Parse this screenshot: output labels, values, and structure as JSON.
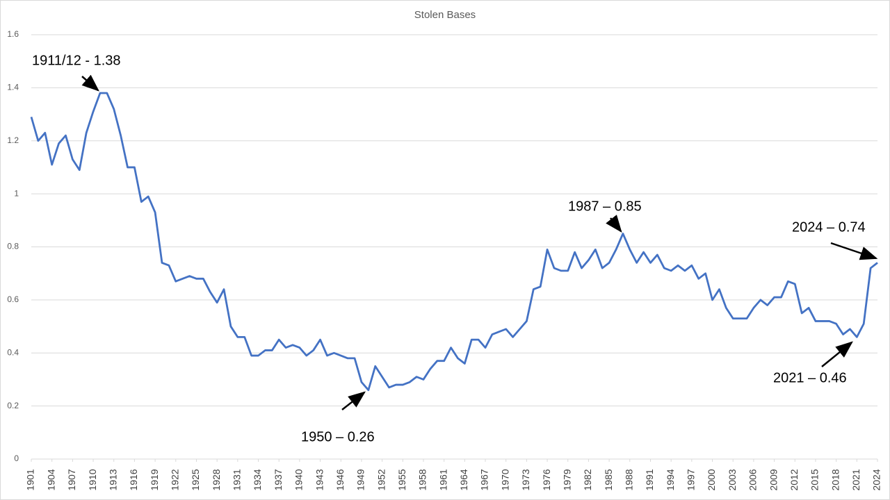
{
  "chart_data": {
    "type": "line",
    "title": "Stolen Bases",
    "x": [
      1901,
      1902,
      1903,
      1904,
      1905,
      1906,
      1907,
      1908,
      1909,
      1910,
      1911,
      1912,
      1913,
      1914,
      1915,
      1916,
      1917,
      1918,
      1919,
      1920,
      1921,
      1922,
      1923,
      1924,
      1925,
      1926,
      1927,
      1928,
      1929,
      1930,
      1931,
      1932,
      1933,
      1934,
      1935,
      1936,
      1937,
      1938,
      1939,
      1940,
      1941,
      1942,
      1943,
      1944,
      1945,
      1946,
      1947,
      1948,
      1949,
      1950,
      1951,
      1952,
      1953,
      1954,
      1955,
      1956,
      1957,
      1958,
      1959,
      1960,
      1961,
      1962,
      1963,
      1964,
      1965,
      1966,
      1967,
      1968,
      1969,
      1970,
      1971,
      1972,
      1973,
      1974,
      1975,
      1976,
      1977,
      1978,
      1979,
      1980,
      1981,
      1982,
      1983,
      1984,
      1985,
      1986,
      1987,
      1988,
      1989,
      1990,
      1991,
      1992,
      1993,
      1994,
      1995,
      1996,
      1997,
      1998,
      1999,
      2000,
      2001,
      2002,
      2003,
      2004,
      2005,
      2006,
      2007,
      2008,
      2009,
      2010,
      2011,
      2012,
      2013,
      2014,
      2015,
      2016,
      2017,
      2018,
      2019,
      2020,
      2021,
      2022,
      2023,
      2024
    ],
    "values": [
      1.29,
      1.2,
      1.23,
      1.11,
      1.19,
      1.22,
      1.13,
      1.09,
      1.23,
      1.31,
      1.38,
      1.38,
      1.32,
      1.22,
      1.1,
      1.1,
      0.97,
      0.99,
      0.93,
      0.74,
      0.73,
      0.67,
      0.68,
      0.69,
      0.68,
      0.68,
      0.63,
      0.59,
      0.64,
      0.5,
      0.46,
      0.46,
      0.39,
      0.39,
      0.41,
      0.41,
      0.45,
      0.42,
      0.43,
      0.42,
      0.39,
      0.41,
      0.45,
      0.39,
      0.4,
      0.39,
      0.38,
      0.38,
      0.29,
      0.26,
      0.35,
      0.31,
      0.27,
      0.28,
      0.28,
      0.29,
      0.31,
      0.3,
      0.34,
      0.37,
      0.37,
      0.42,
      0.38,
      0.36,
      0.45,
      0.45,
      0.42,
      0.47,
      0.48,
      0.49,
      0.46,
      0.49,
      0.52,
      0.64,
      0.65,
      0.79,
      0.72,
      0.71,
      0.71,
      0.78,
      0.72,
      0.75,
      0.79,
      0.72,
      0.74,
      0.79,
      0.85,
      0.79,
      0.74,
      0.78,
      0.74,
      0.77,
      0.72,
      0.71,
      0.73,
      0.71,
      0.73,
      0.68,
      0.7,
      0.6,
      0.64,
      0.57,
      0.53,
      0.53,
      0.53,
      0.57,
      0.6,
      0.58,
      0.61,
      0.61,
      0.67,
      0.66,
      0.55,
      0.57,
      0.52,
      0.52,
      0.52,
      0.51,
      0.47,
      0.49,
      0.46,
      0.51,
      0.72,
      0.74
    ],
    "color": "#4472c4",
    "xlim": [
      1901,
      2024
    ],
    "xticks": [
      1901,
      1904,
      1907,
      1910,
      1913,
      1916,
      1919,
      1922,
      1925,
      1928,
      1931,
      1934,
      1937,
      1940,
      1943,
      1946,
      1949,
      1952,
      1955,
      1958,
      1961,
      1964,
      1967,
      1970,
      1973,
      1976,
      1979,
      1982,
      1985,
      1988,
      1991,
      1994,
      1997,
      2000,
      2003,
      2006,
      2009,
      2012,
      2015,
      2018,
      2021,
      2024
    ],
    "ylim": [
      0,
      1.6
    ],
    "yticks": [
      0,
      0.2,
      0.4,
      0.6,
      0.8,
      1,
      1.2,
      1.4,
      1.6
    ],
    "grid": true,
    "annotations": [
      "1911/12 - 1.38",
      "1987 – 0.85",
      "2024 – 0.74",
      "1950 – 0.26",
      "2021 – 0.46"
    ]
  }
}
